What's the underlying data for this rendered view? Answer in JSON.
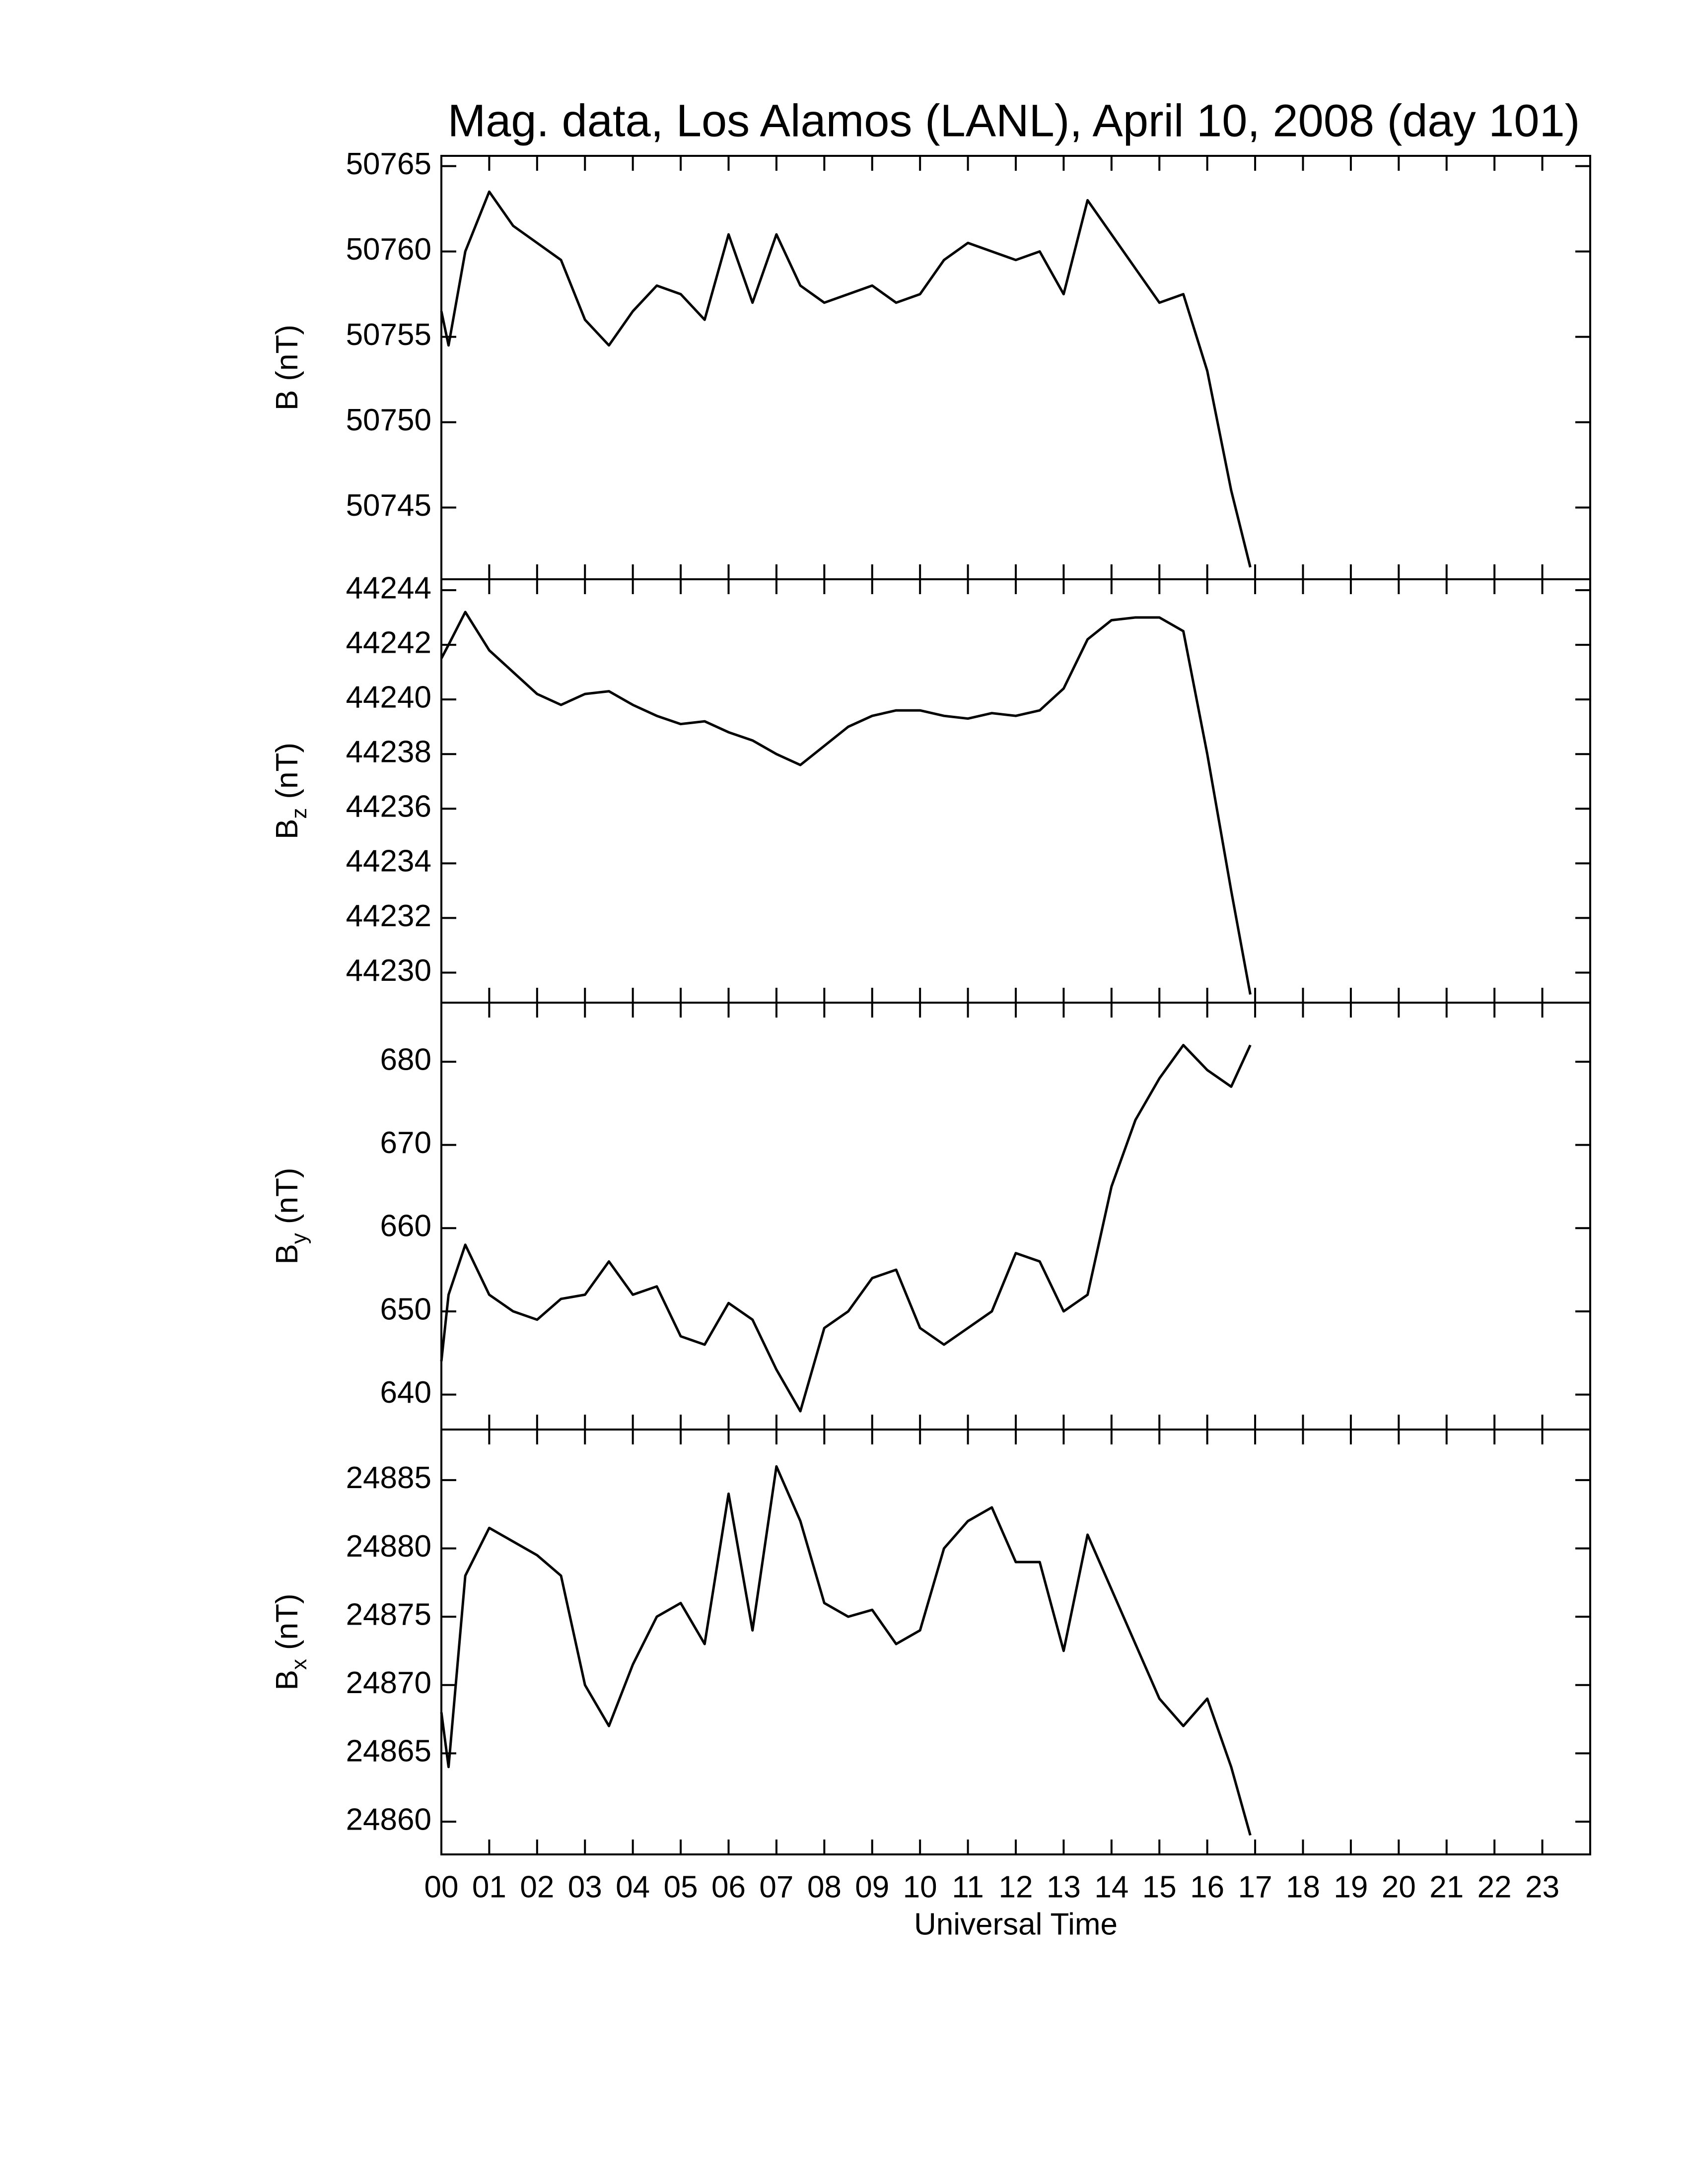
{
  "chart_data": [
    {
      "type": "line",
      "title": "Mag. data, Los Alamos (LANL), April 10, 2008 (day 101)",
      "ylabel": "B",
      "ylabel_unit": "(nT)",
      "color": "#000000",
      "xlim": [
        0,
        24
      ],
      "ylim": [
        50740.8,
        50765.6
      ],
      "yticks": [
        50745,
        50750,
        50755,
        50760,
        50765
      ],
      "x": [
        0,
        0.15,
        0.5,
        1,
        1.5,
        2,
        2.5,
        3,
        3.5,
        4,
        4.5,
        5,
        5.5,
        6,
        6.5,
        7,
        7.5,
        8,
        8.5,
        9,
        9.5,
        10,
        10.5,
        11,
        11.5,
        12,
        12.5,
        13,
        13.5,
        14,
        14.5,
        15,
        15.5,
        16,
        16.5,
        16.9
      ],
      "values": [
        50756.5,
        50754.5,
        50760,
        50763.5,
        50761.5,
        50760.5,
        50759.5,
        50756,
        50754.5,
        50756.5,
        50758,
        50757.5,
        50756,
        50761,
        50757,
        50761,
        50758,
        50757,
        50757.5,
        50758,
        50757,
        50757.5,
        50759.5,
        50760.5,
        50760,
        50759.5,
        50760,
        50757.5,
        50763,
        50761,
        50759,
        50757,
        50757.5,
        50753,
        50746,
        50741.5
      ]
    },
    {
      "type": "line",
      "ylabel": "B",
      "ylabel_sub": "z",
      "ylabel_unit": "(nT)",
      "color": "#000000",
      "xlim": [
        0,
        24
      ],
      "ylim": [
        44228.9,
        44244.4
      ],
      "yticks": [
        44230,
        44232,
        44234,
        44236,
        44238,
        44240,
        44242,
        44244
      ],
      "x": [
        0,
        0.15,
        0.5,
        1,
        1.5,
        2,
        2.5,
        3,
        3.5,
        4,
        4.5,
        5,
        5.5,
        6,
        6.5,
        7,
        7.5,
        8,
        8.5,
        9,
        9.5,
        10,
        10.5,
        11,
        11.5,
        12,
        12.5,
        13,
        13.5,
        14,
        14.5,
        15,
        15.5,
        16,
        16.5,
        16.9
      ],
      "values": [
        44241.5,
        44242,
        44243.2,
        44241.8,
        44241,
        44240.2,
        44239.8,
        44240.2,
        44240.3,
        44239.8,
        44239.4,
        44239.1,
        44239.2,
        44238.8,
        44238.5,
        44238,
        44237.6,
        44238.3,
        44239,
        44239.4,
        44239.6,
        44239.6,
        44239.4,
        44239.3,
        44239.5,
        44239.4,
        44239.6,
        44240.4,
        44242.2,
        44242.9,
        44243,
        44243,
        44242.5,
        44238,
        44233,
        44229.2
      ]
    },
    {
      "type": "line",
      "ylabel": "B",
      "ylabel_sub": "y",
      "ylabel_unit": "(nT)",
      "color": "#000000",
      "xlim": [
        0,
        24
      ],
      "ylim": [
        635.8,
        687.1
      ],
      "yticks": [
        640,
        650,
        660,
        670,
        680
      ],
      "x": [
        0,
        0.15,
        0.5,
        1,
        1.5,
        2,
        2.5,
        3,
        3.5,
        4,
        4.5,
        5,
        5.5,
        6,
        6.5,
        7,
        7.5,
        8,
        8.5,
        9,
        9.5,
        10,
        10.5,
        11,
        11.5,
        12,
        12.5,
        13,
        13.5,
        14,
        14.5,
        15,
        15.5,
        16,
        16.5,
        16.9
      ],
      "values": [
        644,
        652,
        658,
        652,
        650,
        649,
        651.5,
        652,
        656,
        652,
        653,
        647,
        646,
        651,
        649,
        643,
        638,
        648,
        650,
        654,
        655,
        648,
        646,
        648,
        650,
        657,
        656,
        650,
        652,
        665,
        673,
        678,
        682,
        679,
        677,
        682
      ]
    },
    {
      "type": "line",
      "ylabel": "B",
      "ylabel_sub": "x",
      "ylabel_unit": "(nT)",
      "color": "#000000",
      "xlabel": "Universal Time",
      "xlim": [
        0,
        24
      ],
      "ylim": [
        24857.6,
        24888.7
      ],
      "yticks": [
        24860,
        24865,
        24870,
        24875,
        24880,
        24885
      ],
      "xticks": [
        {
          "value": 0,
          "label": "00"
        },
        {
          "value": 1,
          "label": "01"
        },
        {
          "value": 2,
          "label": "02"
        },
        {
          "value": 3,
          "label": "03"
        },
        {
          "value": 4,
          "label": "04"
        },
        {
          "value": 5,
          "label": "05"
        },
        {
          "value": 6,
          "label": "06"
        },
        {
          "value": 7,
          "label": "07"
        },
        {
          "value": 8,
          "label": "08"
        },
        {
          "value": 9,
          "label": "09"
        },
        {
          "value": 10,
          "label": "10"
        },
        {
          "value": 11,
          "label": "11"
        },
        {
          "value": 12,
          "label": "12"
        },
        {
          "value": 13,
          "label": "13"
        },
        {
          "value": 14,
          "label": "14"
        },
        {
          "value": 15,
          "label": "15"
        },
        {
          "value": 16,
          "label": "16"
        },
        {
          "value": 17,
          "label": "17"
        },
        {
          "value": 18,
          "label": "18"
        },
        {
          "value": 19,
          "label": "19"
        },
        {
          "value": 20,
          "label": "20"
        },
        {
          "value": 21,
          "label": "21"
        },
        {
          "value": 22,
          "label": "22"
        },
        {
          "value": 23,
          "label": "23"
        }
      ],
      "x": [
        0,
        0.15,
        0.5,
        1,
        1.5,
        2,
        2.5,
        3,
        3.5,
        4,
        4.5,
        5,
        5.5,
        6,
        6.5,
        7,
        7.5,
        8,
        8.5,
        9,
        9.5,
        10,
        10.5,
        11,
        11.5,
        12,
        12.5,
        13,
        13.5,
        14,
        14.5,
        15,
        15.5,
        16,
        16.5,
        16.9
      ],
      "values": [
        24868,
        24864,
        24878,
        24881.5,
        24880.5,
        24879.5,
        24878,
        24870,
        24867,
        24871.5,
        24875,
        24876,
        24873,
        24884,
        24874,
        24886,
        24882,
        24876,
        24875,
        24875.5,
        24873,
        24874,
        24880,
        24882,
        24883,
        24879,
        24879,
        24872.5,
        24881,
        24877,
        24873,
        24869,
        24867,
        24869,
        24864,
        24859
      ]
    }
  ]
}
